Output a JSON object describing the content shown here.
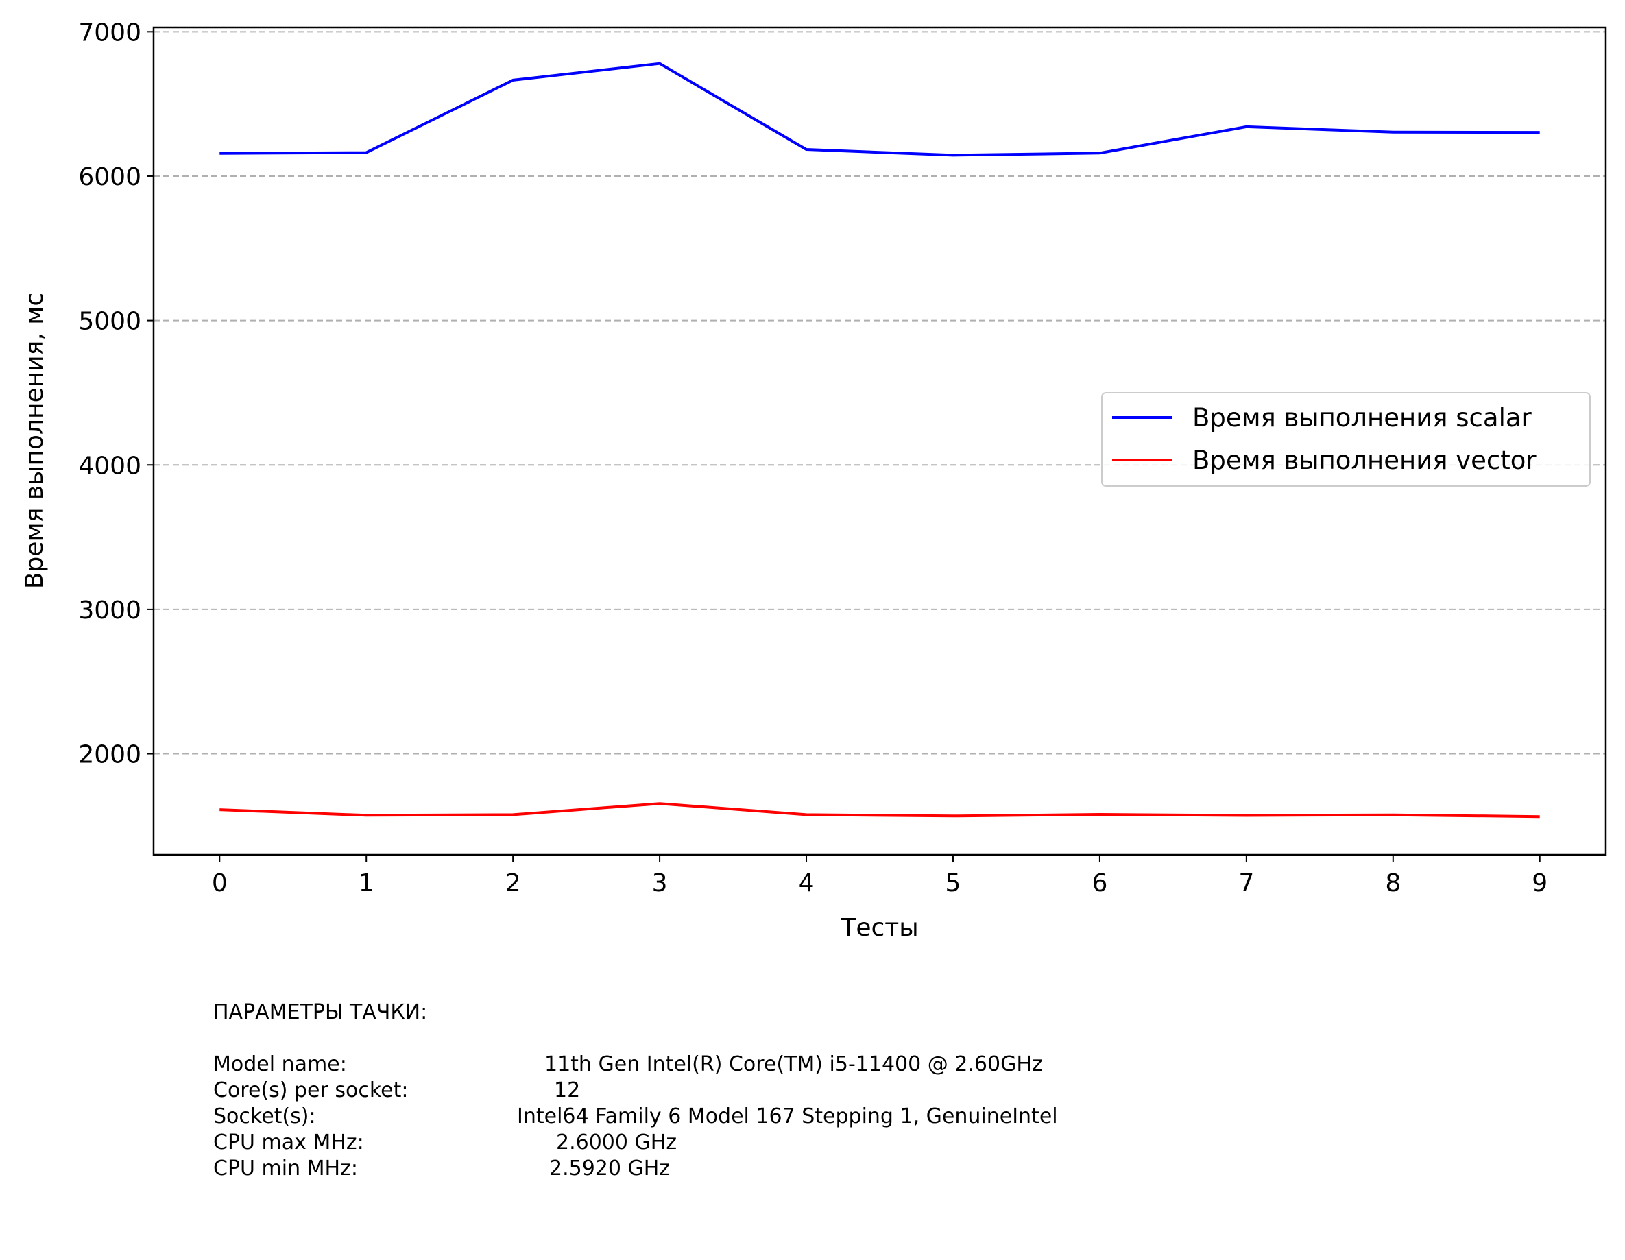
{
  "chart_data": {
    "type": "line",
    "title": "",
    "xlabel": "Тесты",
    "ylabel": "Время выполнения, мс",
    "x": [
      0,
      1,
      2,
      3,
      4,
      5,
      6,
      7,
      8,
      9
    ],
    "xlim": [
      -0.45,
      9.45
    ],
    "ylim": [
      1300,
      7030
    ],
    "xticks": [
      "0",
      "1",
      "2",
      "3",
      "4",
      "5",
      "6",
      "7",
      "8",
      "9"
    ],
    "yticks": [
      2000,
      3000,
      4000,
      5000,
      6000,
      7000
    ],
    "grid": "y-dashed",
    "legend_position": "center-right",
    "series": [
      {
        "name": "Время выполнения scalar",
        "color": "#0000ff",
        "values": [
          6158,
          6163,
          6665,
          6780,
          6185,
          6145,
          6160,
          6342,
          6305,
          6303
        ]
      },
      {
        "name": "Время выполнения vector",
        "color": "#ff0000",
        "values": [
          1613,
          1574,
          1578,
          1655,
          1578,
          1569,
          1580,
          1573,
          1577,
          1565
        ]
      }
    ]
  },
  "info": {
    "heading": "ПАРАМЕТРЫ ТАЧКИ:",
    "rows": [
      {
        "key": "Model name:",
        "value": "11th Gen Intel(R) Core(TM) i5-11400 @ 2.60GHz"
      },
      {
        "key": "Core(s) per socket:",
        "value": "12"
      },
      {
        "key": "Socket(s):",
        "value": "Intel64 Family 6 Model 167 Stepping 1, GenuineIntel"
      },
      {
        "key": "CPU max MHz:",
        "value": "2.6000 GHz"
      },
      {
        "key": "CPU min MHz:",
        "value": "2.5920 GHz"
      }
    ]
  }
}
